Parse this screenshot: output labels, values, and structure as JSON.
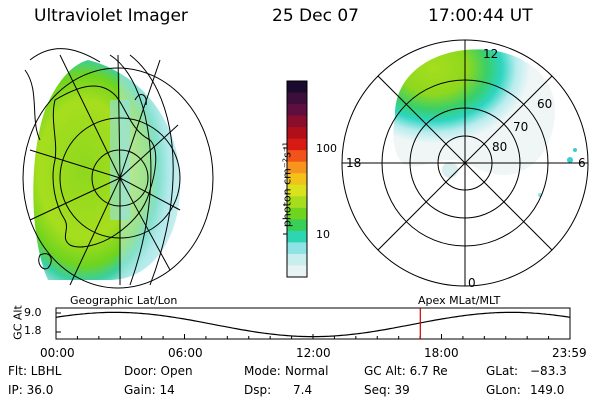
{
  "header": {
    "title": "Ultraviolet Imager",
    "date": "25 Dec 07",
    "time": "17:00:44 UT"
  },
  "colorbar": {
    "unit_label": "photon cm⁻²s⁻¹",
    "tick_labels": [
      "100",
      "10"
    ],
    "colors": [
      "#1a0a2e",
      "#3b0f3a",
      "#5e0f3f",
      "#8a0d2c",
      "#b00f1a",
      "#d81a14",
      "#f0541a",
      "#f7941d",
      "#f2c21b",
      "#d9e21c",
      "#a6de1e",
      "#6fd41e",
      "#39cf57",
      "#2dd5b0",
      "#8fe3e6",
      "#c9eeee",
      "#e8f3f3"
    ]
  },
  "polar_plot": {
    "mlt_labels": {
      "top": "12",
      "left": "18",
      "right": "6",
      "bottom": "0"
    },
    "lat_labels": [
      "60",
      "70",
      "80"
    ]
  },
  "timeline": {
    "left_title": "Geographic Lat/Lon",
    "right_title": "Apex MLat/MLT",
    "axis_label": "GC Alt",
    "y_ticks": [
      "9.0",
      "1.8"
    ],
    "x_ticks": [
      "00:00",
      "06:00",
      "12:00",
      "18:00",
      "23:59"
    ],
    "marker_time_hours": 17.01,
    "marker_color": "#d00000"
  },
  "info": {
    "row1": {
      "flt": "Flt: LBHL",
      "door": "Door: Open",
      "mode_label": "Mode:",
      "mode_value": "Normal",
      "gc_alt": "GC Alt: 6.7 Re",
      "glat_label": "GLat:",
      "glat_value": "−83.3"
    },
    "row2": {
      "ip": "IP: 36.0",
      "gain": "Gain: 14",
      "dsp_label": "Dsp:",
      "dsp_value": "7.4",
      "seq": "Seq: 39",
      "glon_label": "GLon:",
      "glon_value": "149.0"
    }
  }
}
